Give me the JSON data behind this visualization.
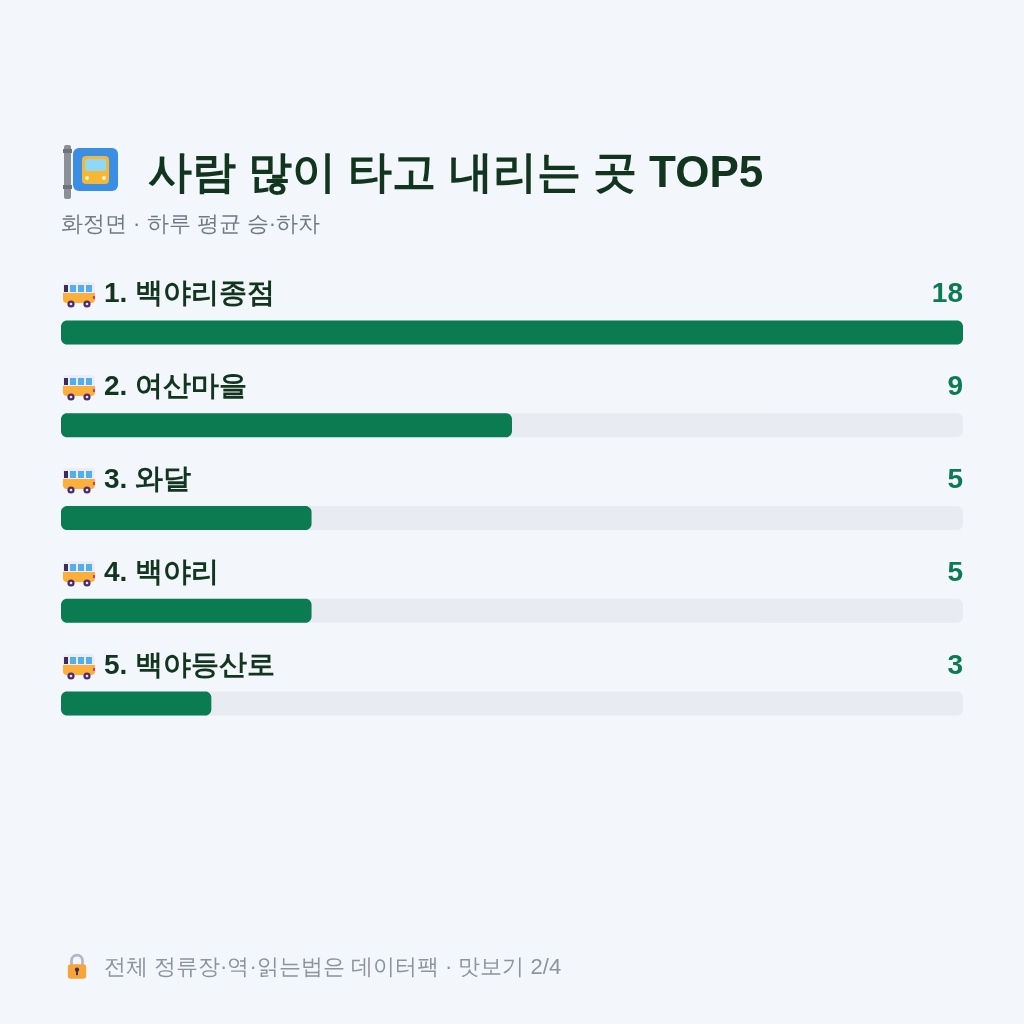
{
  "chart_data": {
    "type": "bar",
    "orientation": "horizontal",
    "title": "사람 많이 타고 내리는 곳 TOP5",
    "subtitle": "화정면 · 하루 평균 승·하차",
    "categories": [
      "1. 백야리종점",
      "2. 여산마을",
      "3. 와달",
      "4. 백야리",
      "5. 백야등산로"
    ],
    "values": [
      18,
      9,
      5,
      5,
      3
    ],
    "color": "#0b7b52",
    "data_labels": true,
    "xlim": [
      0,
      18
    ],
    "tick_labels": "y",
    "annotations": [
      "전체 정류장·역·읽는법은 데이터팩 · 맛보기 2/4"
    ]
  }
}
